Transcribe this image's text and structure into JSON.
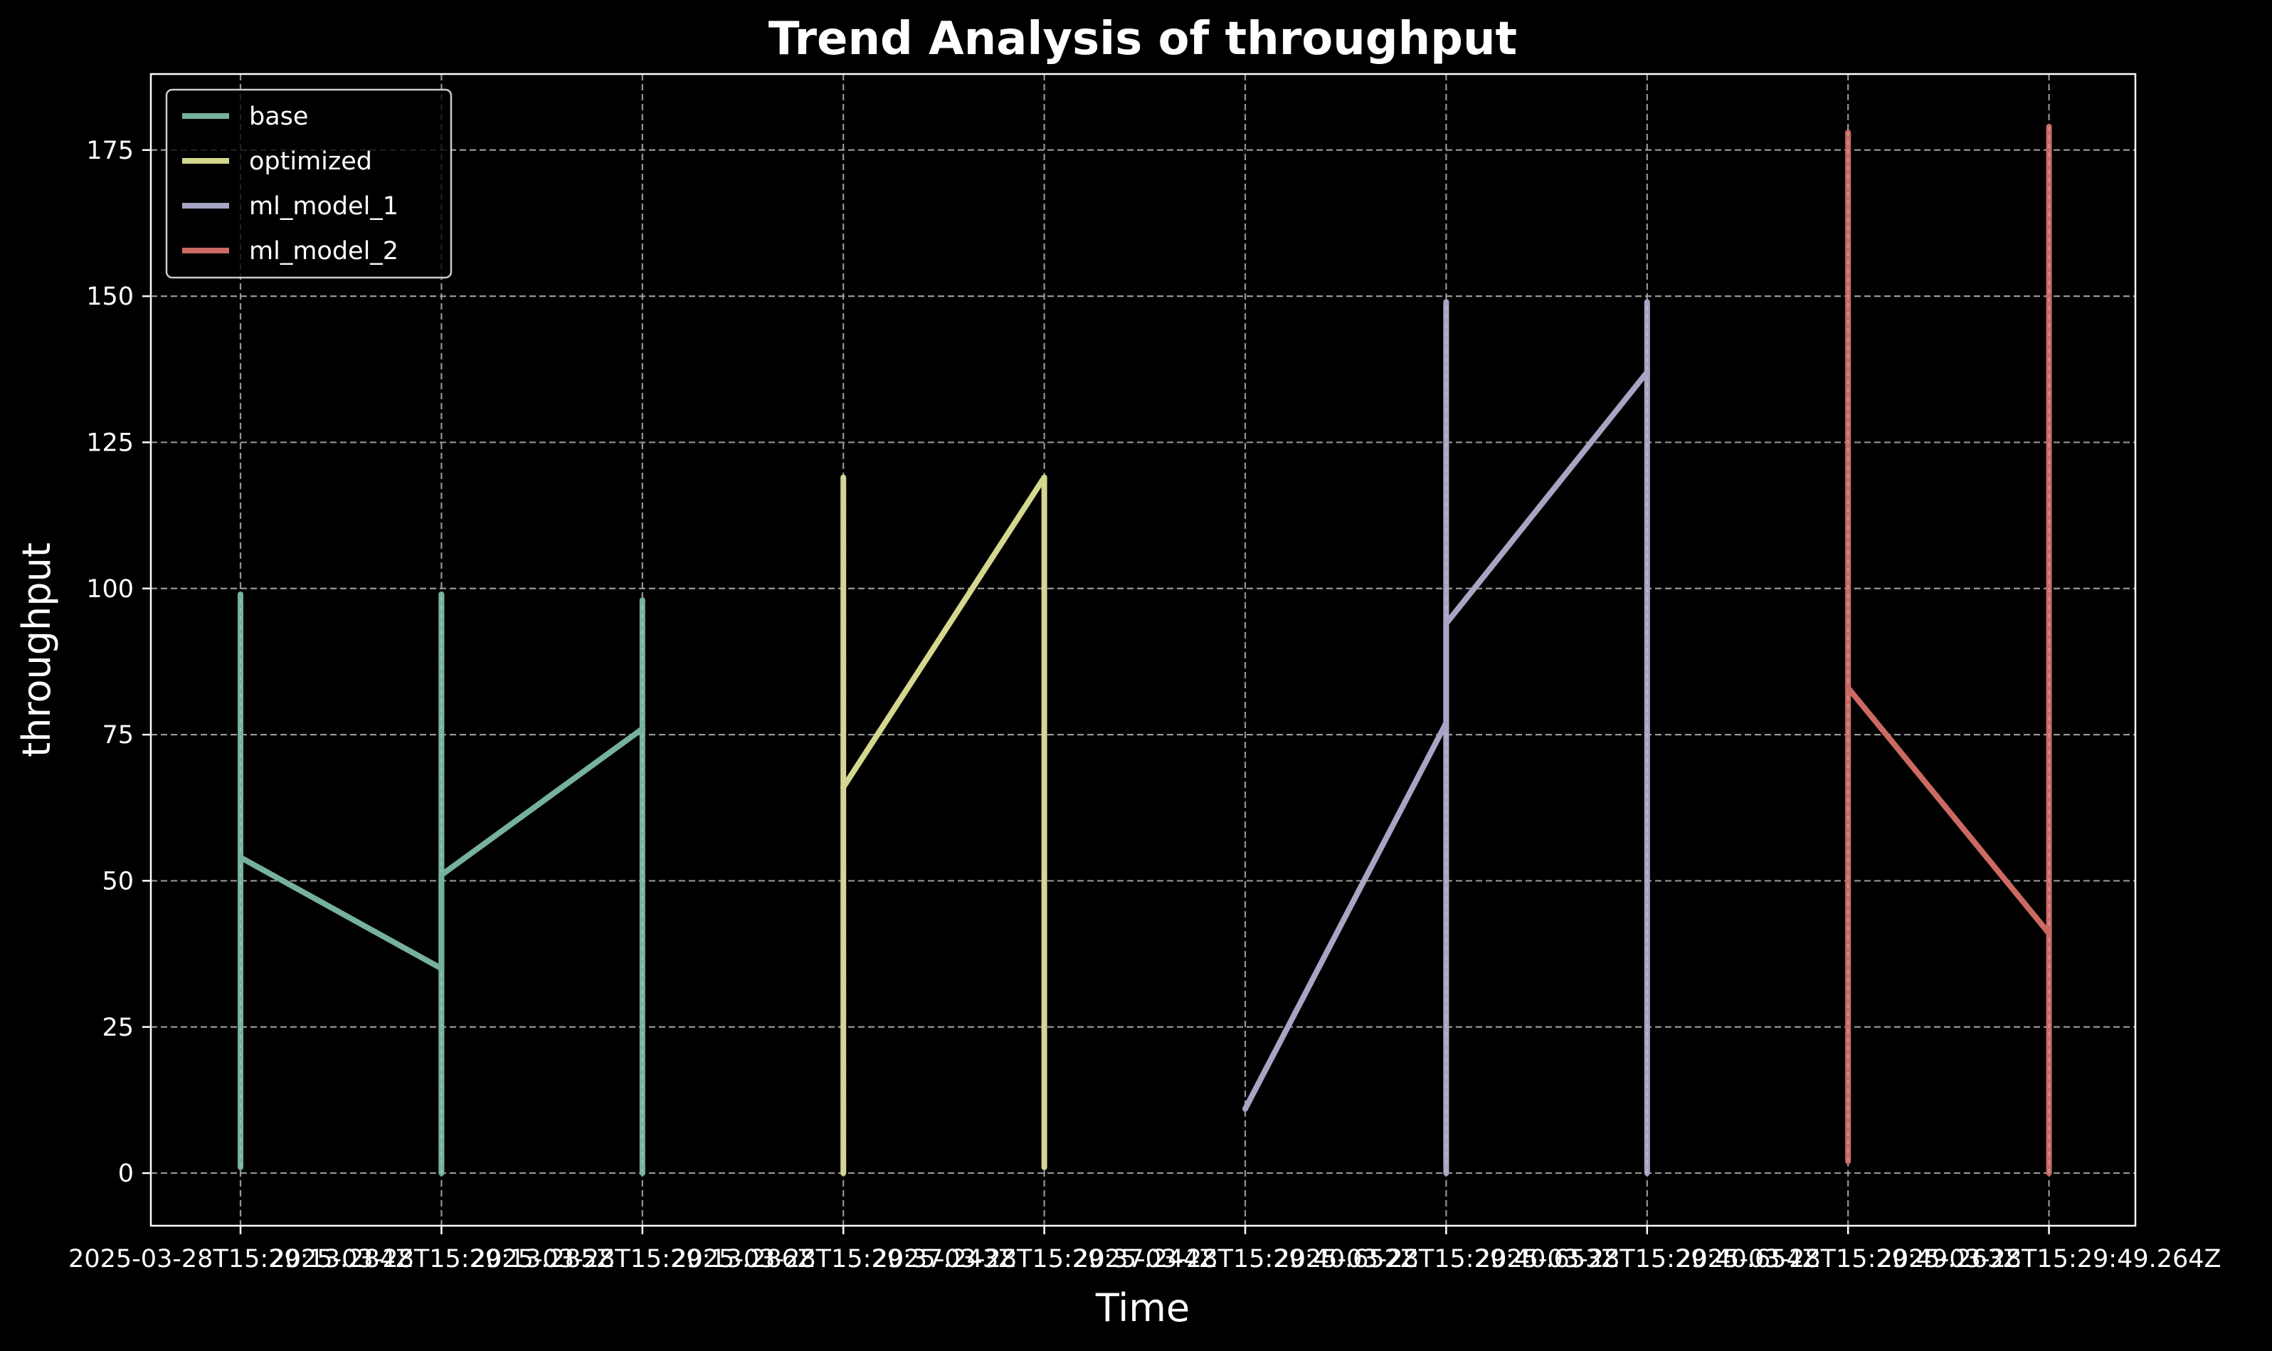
{
  "chart_data": {
    "type": "line",
    "title": "Trend Analysis of throughput",
    "xlabel": "Time",
    "ylabel": "throughput",
    "ylim": [
      -9,
      188
    ],
    "yticks": [
      0,
      25,
      50,
      75,
      100,
      125,
      150,
      175
    ],
    "x_ticks": [
      "2025-03-28T15:29:13.284Z",
      "2025-03-28T15:29:13.285Z",
      "2025-03-28T15:29:13.286Z",
      "2025-03-28T15:29:37.243Z",
      "2025-03-28T15:29:37.244Z",
      "2025-03-28T15:29:40.652Z",
      "2025-03-28T15:29:40.653Z",
      "2025-03-28T15:29:40.654Z",
      "2025-03-28T15:29:49.263Z",
      "2025-03-28T15:29:49.264Z"
    ],
    "grid": true,
    "legend_position": "top-left",
    "background": "#000000",
    "series": [
      {
        "name": "base",
        "color": "#76b1a0",
        "points": [
          {
            "x": "2025-03-28T15:29:13.284Z",
            "y": 54,
            "min": 1,
            "max": 99
          },
          {
            "x": "2025-03-28T15:29:13.285Z",
            "y": 35,
            "min": 0,
            "max": 99
          },
          {
            "x": "2025-03-28T15:29:13.285Z",
            "y": 51,
            "min": 0,
            "max": 99
          },
          {
            "x": "2025-03-28T15:29:13.286Z",
            "y": 76,
            "min": 0,
            "max": 98
          }
        ]
      },
      {
        "name": "optimized",
        "color": "#d4d88f",
        "points": [
          {
            "x": "2025-03-28T15:29:37.243Z",
            "y": 66,
            "min": 0,
            "max": 119
          },
          {
            "x": "2025-03-28T15:29:37.244Z",
            "y": 119,
            "min": 1,
            "max": 119
          }
        ]
      },
      {
        "name": "ml_model_1",
        "color": "#a7a5c4",
        "points": [
          {
            "x": "2025-03-28T15:29:40.652Z",
            "y": 11
          },
          {
            "x": "2025-03-28T15:29:40.653Z",
            "y": 77,
            "min": 0,
            "max": 149
          },
          {
            "x": "2025-03-28T15:29:40.653Z",
            "y": 94,
            "min": 0,
            "max": 149
          },
          {
            "x": "2025-03-28T15:29:40.654Z",
            "y": 137,
            "min": 0,
            "max": 149
          }
        ]
      },
      {
        "name": "ml_model_2",
        "color": "#cc6a62",
        "points": [
          {
            "x": "2025-03-28T15:29:49.263Z",
            "y": 83,
            "min": 2,
            "max": 178
          },
          {
            "x": "2025-03-28T15:29:49.264Z",
            "y": 41,
            "min": 0,
            "max": 179
          }
        ]
      }
    ]
  }
}
